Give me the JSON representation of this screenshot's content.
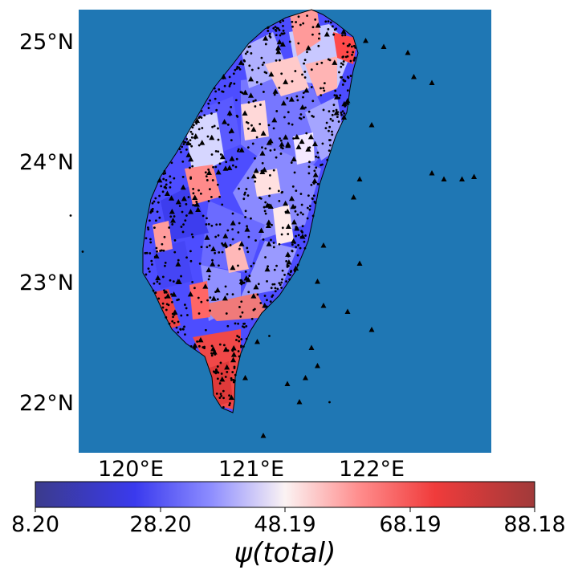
{
  "map": {
    "latitude_labels": [
      "25°N",
      "24°N",
      "23°N",
      "22°N"
    ],
    "longitude_labels": [
      "120°E",
      "121°E",
      "122°E"
    ],
    "extent": {
      "lon_min": 119.5,
      "lon_max": 122.9,
      "lat_min": 21.55,
      "lat_max": 25.25
    },
    "ocean_color": "#1f77b4",
    "land_outline_color": "#000000",
    "station_marker": "triangle",
    "event_marker": "dot"
  },
  "colorbar": {
    "colormap": "seismic",
    "ticks": [
      "8.20",
      "28.20",
      "48.19",
      "68.19",
      "88.18"
    ],
    "min": 8.2,
    "max": 88.18,
    "title": "ψ(total)"
  },
  "chart_data": {
    "type": "heatmap",
    "title": "",
    "xlabel": "",
    "ylabel": "",
    "value_range": [
      8.2,
      88.18
    ],
    "high_value_regions": [
      {
        "lon": 120.75,
        "lat": 22.2,
        "value": 80
      },
      {
        "lon": 120.95,
        "lat": 22.75,
        "value": 75
      },
      {
        "lon": 121.6,
        "lat": 25.15,
        "value": 70
      },
      {
        "lon": 121.45,
        "lat": 24.85,
        "value": 62
      },
      {
        "lon": 120.2,
        "lat": 22.75,
        "value": 72
      },
      {
        "lon": 120.55,
        "lat": 22.85,
        "value": 68
      },
      {
        "lon": 121.15,
        "lat": 24.75,
        "value": 62
      },
      {
        "lon": 120.75,
        "lat": 23.75,
        "value": 66
      }
    ],
    "stations_offshore": [
      [
        121.95,
        25.0
      ],
      [
        122.1,
        24.95
      ],
      [
        122.3,
        24.9
      ],
      [
        122.35,
        24.7
      ],
      [
        122.5,
        24.65
      ],
      [
        121.8,
        24.5
      ],
      [
        122.0,
        24.3
      ],
      [
        122.5,
        23.9
      ],
      [
        122.6,
        23.85
      ],
      [
        122.75,
        23.85
      ],
      [
        122.85,
        23.87
      ],
      [
        121.9,
        23.85
      ],
      [
        121.85,
        23.7
      ],
      [
        121.6,
        23.3
      ],
      [
        121.55,
        23.0
      ],
      [
        121.9,
        23.15
      ],
      [
        121.6,
        22.8
      ],
      [
        121.8,
        22.75
      ],
      [
        121.5,
        22.45
      ],
      [
        121.55,
        22.3
      ],
      [
        121.45,
        22.2
      ],
      [
        121.3,
        22.15
      ],
      [
        122.0,
        22.6
      ],
      [
        121.4,
        22.0
      ],
      [
        121.1,
        21.72
      ],
      [
        120.95,
        22.2
      ],
      [
        121.05,
        22.5
      ]
    ],
    "events_offshore": [
      [
        119.5,
        23.55
      ],
      [
        119.6,
        23.25
      ],
      [
        121.65,
        22.0
      ],
      [
        121.15,
        22.55
      ]
    ]
  }
}
